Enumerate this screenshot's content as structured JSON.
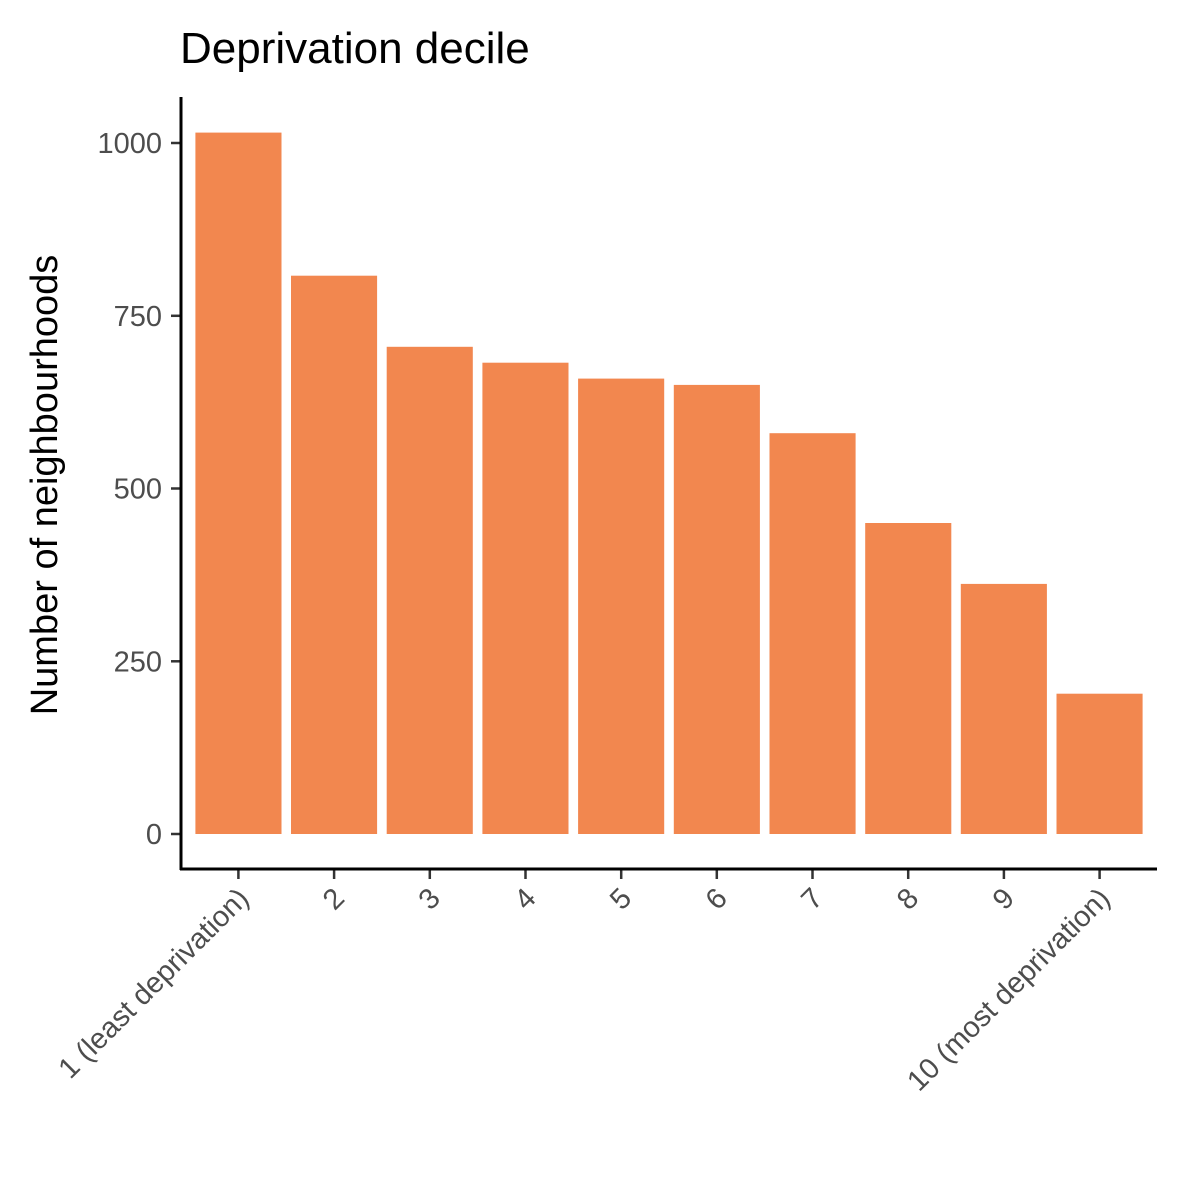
{
  "chart_data": {
    "type": "bar",
    "title": "Deprivation decile",
    "xlabel": "",
    "ylabel": "Number of neighbourhoods",
    "categories": [
      "1 (least deprivation)",
      "2",
      "3",
      "4",
      "5",
      "6",
      "7",
      "8",
      "9",
      "10 (most deprivation)"
    ],
    "values": [
      1015,
      808,
      705,
      682,
      659,
      650,
      580,
      450,
      362,
      203
    ],
    "ylim": [
      0,
      1000
    ],
    "yticks": [
      0,
      250,
      500,
      750,
      1000
    ],
    "ytick_labels": [
      "0",
      "250",
      "500",
      "750",
      "1000"
    ],
    "bar_color": "#f2874f",
    "grid": false,
    "legend": "none"
  }
}
